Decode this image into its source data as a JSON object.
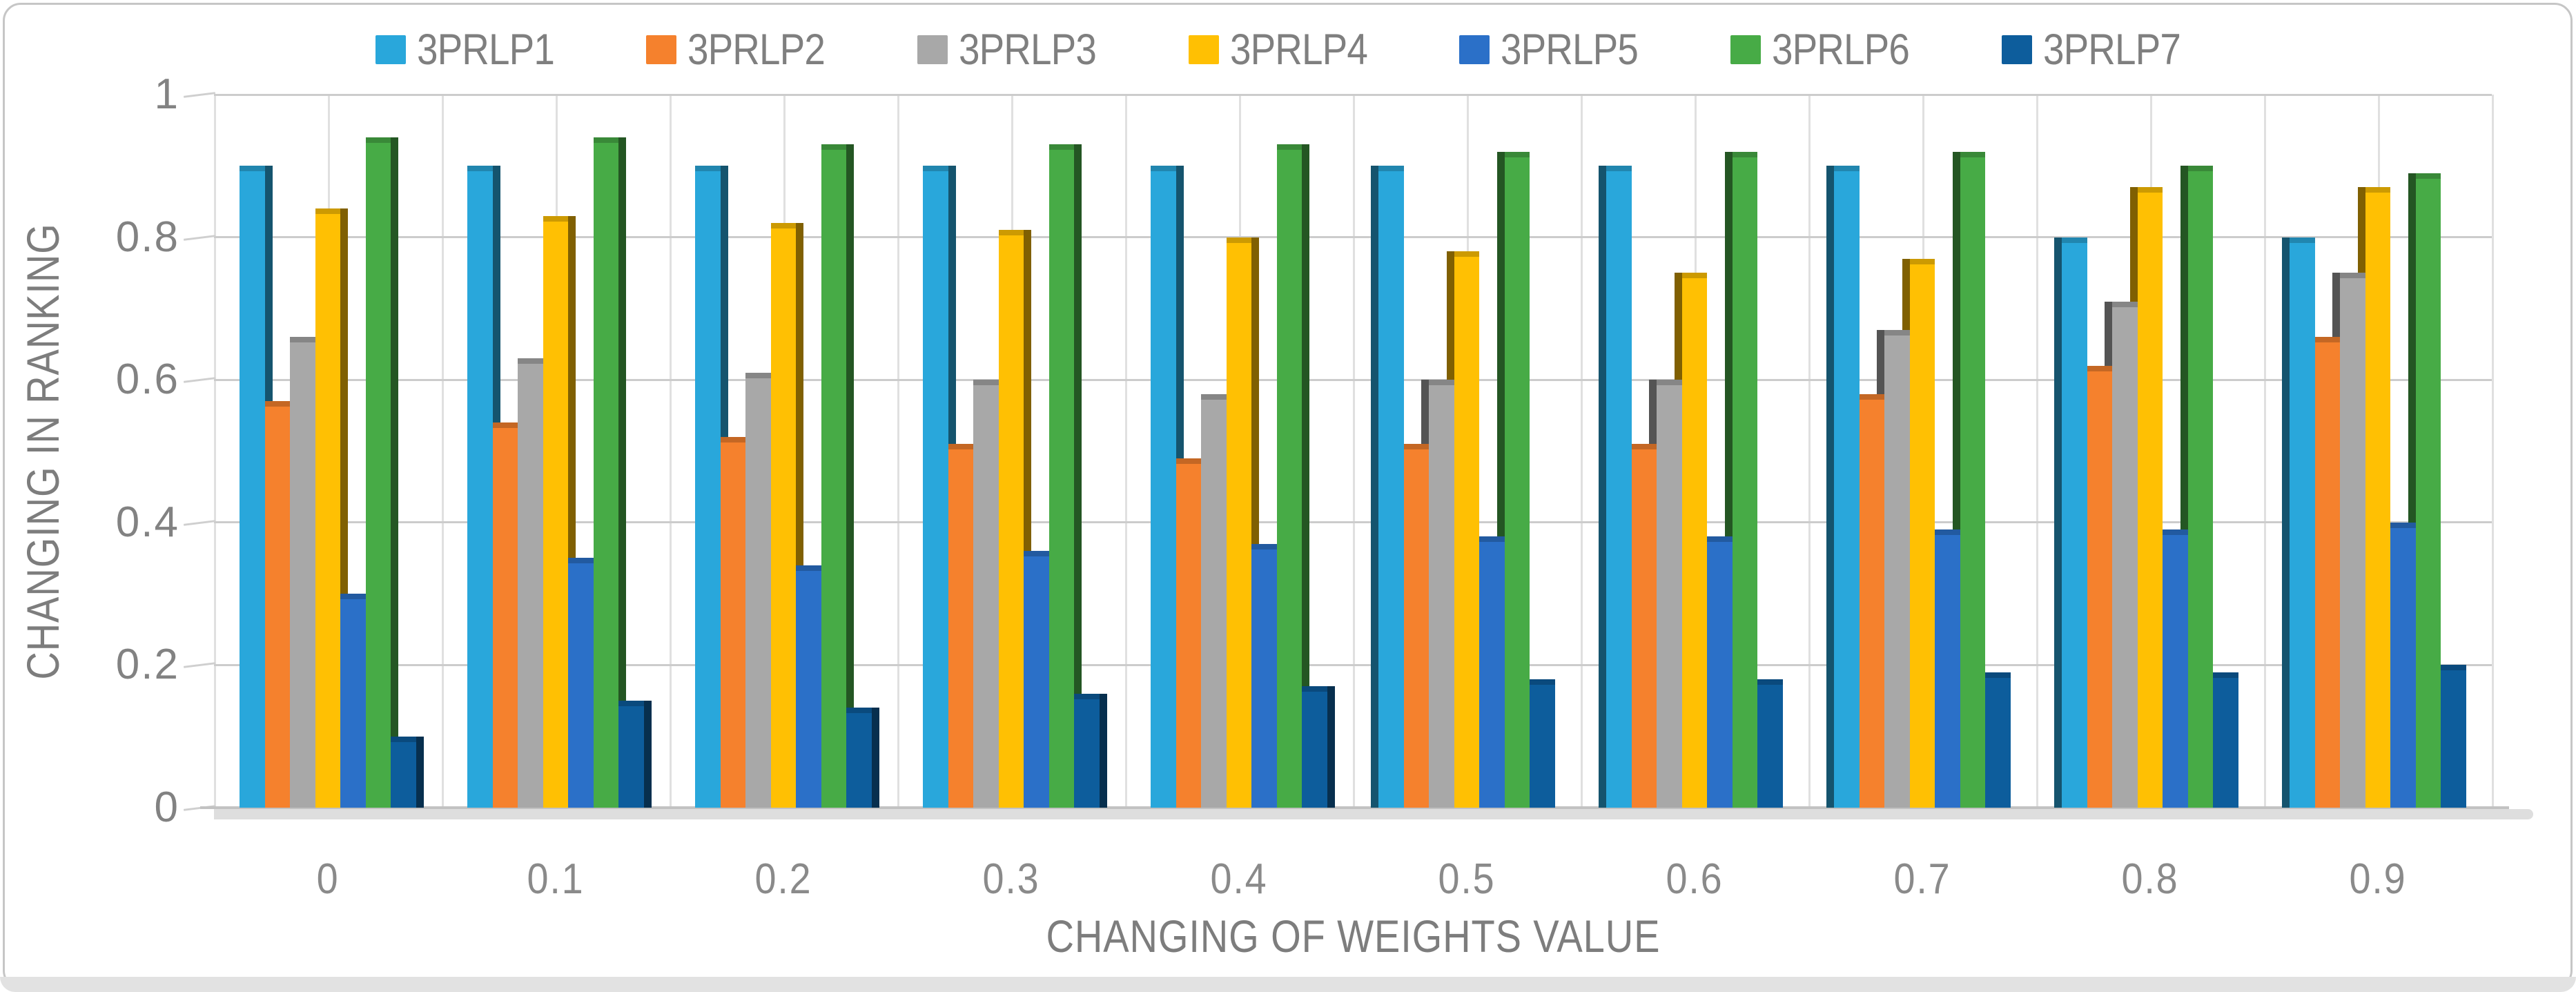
{
  "figure": {
    "border_color": "#c6c6c6",
    "bottom_band_color": "#e2e2e2",
    "text_color": "#7f7f7f",
    "gridline_color": "#cccccc"
  },
  "chart_data": {
    "type": "bar",
    "title": "",
    "xlabel": "CHANGING OF WEIGHTS VALUE",
    "ylabel": "CHANGING IN RANKING",
    "categories": [
      "0",
      "0.1",
      "0.2",
      "0.3",
      "0.4",
      "0.5",
      "0.6",
      "0.7",
      "0.8",
      "0.9"
    ],
    "y_ticks": [
      "0",
      "0.2",
      "0.4",
      "0.6",
      "0.8",
      "1"
    ],
    "ylim": [
      0,
      1
    ],
    "grid": true,
    "legend_position": "top",
    "bar_style": "3d-clustered-column",
    "series": [
      {
        "name": "3PRLP1",
        "color": "#29a7db",
        "values": [
          0.9,
          0.9,
          0.9,
          0.9,
          0.9,
          0.9,
          0.9,
          0.9,
          0.8,
          0.8
        ]
      },
      {
        "name": "3PRLP2",
        "color": "#f5812d",
        "values": [
          0.57,
          0.54,
          0.52,
          0.51,
          0.49,
          0.51,
          0.51,
          0.58,
          0.62,
          0.66
        ]
      },
      {
        "name": "3PRLP3",
        "color": "#a8a8a8",
        "values": [
          0.66,
          0.63,
          0.61,
          0.6,
          0.58,
          0.6,
          0.6,
          0.67,
          0.71,
          0.75
        ]
      },
      {
        "name": "3PRLP4",
        "color": "#ffc003",
        "values": [
          0.84,
          0.83,
          0.82,
          0.81,
          0.8,
          0.78,
          0.75,
          0.77,
          0.87,
          0.87
        ]
      },
      {
        "name": "3PRLP5",
        "color": "#2b70c8",
        "values": [
          0.3,
          0.35,
          0.34,
          0.36,
          0.37,
          0.38,
          0.38,
          0.39,
          0.39,
          0.4
        ]
      },
      {
        "name": "3PRLP6",
        "color": "#47ab46",
        "values": [
          0.94,
          0.94,
          0.93,
          0.93,
          0.93,
          0.92,
          0.92,
          0.92,
          0.9,
          0.89
        ]
      },
      {
        "name": "3PRLP7",
        "color": "#0d5d9c",
        "values": [
          0.1,
          0.15,
          0.14,
          0.16,
          0.17,
          0.18,
          0.18,
          0.19,
          0.19,
          0.2
        ]
      }
    ]
  }
}
